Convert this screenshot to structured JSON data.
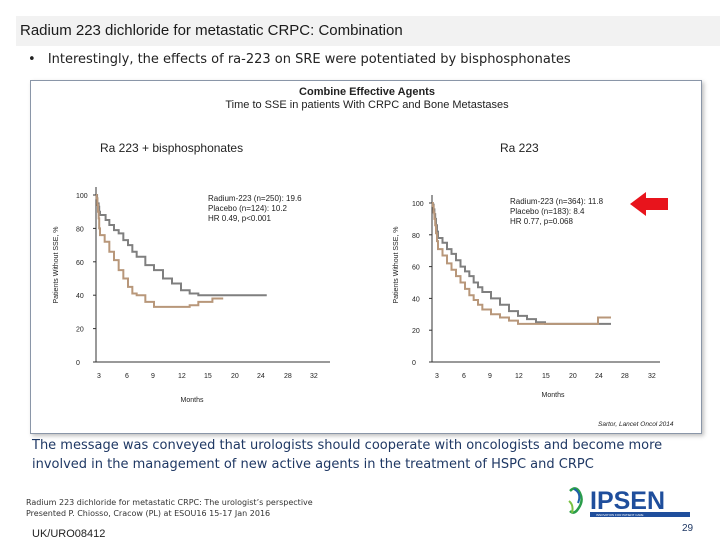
{
  "slide": {
    "title": "Radium 223 dichloride for metastatic CRPC: Combination",
    "bullet": "Interestingly, the effects of ra-223 on SRE were potentiated by bisphosphonates",
    "bullet_marker": "•",
    "message": "The message was conveyed that urologists should cooperate with oncologists and become more involved in the management of new active agents in the treatment of HSPC and CRPC",
    "footer_line1": "Radium 223 dichloride for metastatic CRPC: The urologist’s perspective",
    "footer_line2": "Presented P. Chiosso, Cracow (PL) at ESOU16 15-17 Jan 2016",
    "code": "UK/URO08412",
    "page_number": "29",
    "citation": "Sartor, Lancet Oncol 2014",
    "logo_text": "IPSEN",
    "logo_tagline": "INNOVATION FOR PATIENT CARE"
  },
  "colors": {
    "radium": "#7f7f7f",
    "placebo": "#b8977a",
    "arrow": "#e8141c",
    "text_blue": "#1f3864"
  },
  "chart_data": [
    {
      "type": "line",
      "title": "Combine Effective Agents",
      "subtitle": "Time to SSE in patients With CRPC and Bone Metastases",
      "panel_label": "Ra 223 + bisphosphonates",
      "xlabel": "Months",
      "ylabel": "Patients Without SSE, %",
      "x_ticks": [
        3,
        6,
        9,
        12,
        15,
        20,
        24,
        28,
        32
      ],
      "y_ticks": [
        0,
        20,
        40,
        60,
        80,
        100
      ],
      "ylim": [
        0,
        100
      ],
      "legend_lines": [
        "Radium-223 (n=250): 19.6",
        "Placebo (n=124): 10.2",
        "HR 0.49, p<0.001"
      ],
      "series": [
        {
          "name": "Radium-223",
          "x": [
            0,
            0.4,
            0.8,
            1.0,
            1.6,
            2.0,
            2.4,
            3.0,
            3.3,
            3.6,
            4.0,
            4.5,
            5.0,
            5.5,
            6.0,
            6.5,
            7.0,
            8.0,
            9.0,
            10.0,
            11.0,
            12.0,
            13.0,
            14.0,
            15.0,
            16.0,
            17.0,
            18.0,
            20.0,
            22.0,
            24.0,
            25.0
          ],
          "y": [
            100,
            100,
            98,
            95,
            95,
            93,
            90,
            88,
            88,
            85,
            82,
            79,
            77,
            73,
            70,
            66,
            63,
            58,
            55,
            50,
            47,
            43,
            41,
            40,
            40,
            40,
            40,
            40,
            40,
            40,
            40,
            40
          ]
        },
        {
          "name": "Placebo",
          "x": [
            0,
            0.5,
            1.0,
            1.5,
            2.0,
            2.4,
            3.0,
            3.5,
            4.0,
            4.5,
            5.0,
            5.5,
            6.0,
            6.5,
            7.0,
            8.0,
            9.0,
            10.0,
            11.0,
            12.0,
            13.0,
            14.0,
            16.0,
            18.0
          ],
          "y": [
            100,
            98,
            94,
            90,
            86,
            80,
            76,
            72,
            66,
            61,
            55,
            50,
            45,
            41,
            40,
            36,
            33,
            33,
            33,
            33,
            34,
            36,
            38,
            38
          ]
        }
      ]
    },
    {
      "type": "line",
      "panel_label": "Ra 223",
      "xlabel": "Months",
      "ylabel": "Patients Without SSE, %",
      "x_ticks": [
        3,
        6,
        9,
        12,
        15,
        20,
        24,
        28,
        32
      ],
      "y_ticks": [
        0,
        20,
        40,
        60,
        80,
        100
      ],
      "ylim": [
        0,
        100
      ],
      "legend_lines": [
        "Radium-223 (n=364): 11.8",
        "Placebo (n=183): 8.4",
        "HR 0.77, p=0.068"
      ],
      "series": [
        {
          "name": "Radium-223",
          "x": [
            0,
            0.4,
            0.8,
            1.2,
            1.6,
            2.0,
            2.5,
            3.0,
            3.5,
            4.0,
            4.5,
            5.0,
            5.5,
            6.0,
            6.5,
            7.0,
            7.5,
            8.0,
            9.0,
            10.0,
            11.0,
            12.0,
            13.0,
            14.0,
            15.0,
            16.0,
            17.0,
            18.0,
            19.0,
            20.0,
            21.0,
            22.0,
            24.0,
            26.0
          ],
          "y": [
            100,
            99,
            96,
            93,
            90,
            86,
            82,
            78,
            75,
            71,
            68,
            64,
            60,
            57,
            54,
            50,
            47,
            44,
            40,
            36,
            32,
            29,
            27,
            25,
            24,
            24,
            24,
            24,
            24,
            24,
            24,
            24,
            24,
            24
          ]
        },
        {
          "name": "Placebo",
          "x": [
            0,
            0.4,
            0.8,
            1.2,
            1.6,
            2.0,
            2.5,
            3.0,
            3.5,
            4.0,
            4.5,
            5.0,
            5.5,
            6.0,
            6.5,
            7.0,
            7.5,
            8.0,
            9.0,
            10.0,
            11.0,
            12.0,
            13.0,
            14.0,
            15.0,
            16.0,
            18.0,
            20.0,
            22.0,
            24.0,
            26.0
          ],
          "y": [
            100,
            98,
            94,
            90,
            86,
            81,
            76,
            71,
            67,
            62,
            58,
            54,
            50,
            46,
            42,
            39,
            36,
            33,
            30,
            28,
            26,
            24,
            24,
            24,
            24,
            24,
            24,
            24,
            24,
            28,
            28
          ]
        }
      ]
    }
  ]
}
